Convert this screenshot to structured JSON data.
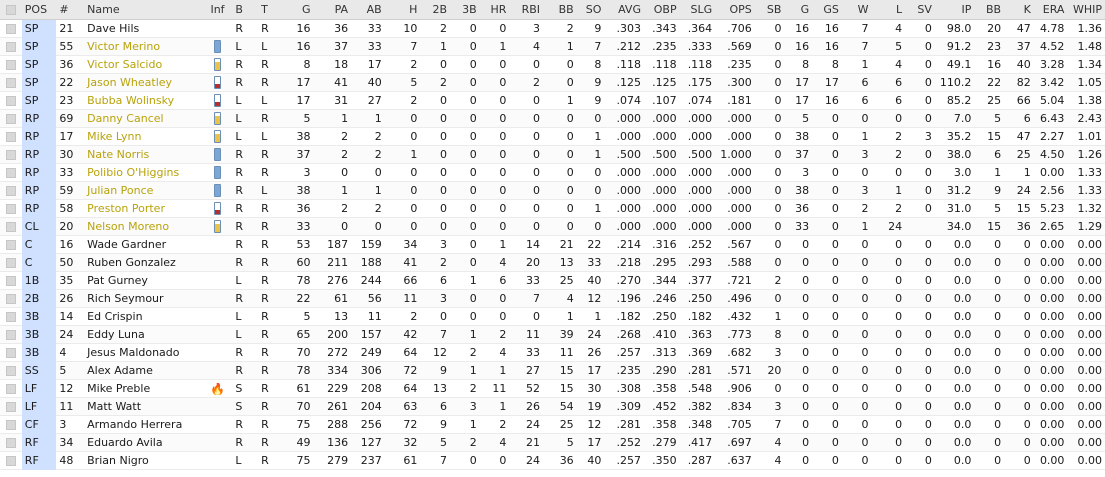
{
  "columns": [
    "POS",
    "#",
    "Name",
    "Inf",
    "B",
    "T",
    "G",
    "PA",
    "AB",
    "H",
    "2B",
    "3B",
    "HR",
    "RBI",
    "BB",
    "SO",
    "AVG",
    "OBP",
    "SLG",
    "OPS",
    "SB",
    "G",
    "GS",
    "W",
    "L",
    "SV",
    "IP",
    "BB",
    "K",
    "ERA",
    "WHIP"
  ],
  "colors": {
    "link": "#b8a30a",
    "battery_blue": "#7aa7d6",
    "battery_yellow": "#e8c44a",
    "battery_red": "#b3312d",
    "pos_bg": "#cfe1ff"
  },
  "rows": [
    {
      "pos": "SP",
      "num": "21",
      "name": "Dave Hils",
      "link": false,
      "inf": "",
      "b": "R",
      "t": "R",
      "v": [
        "16",
        "36",
        "33",
        "10",
        "2",
        "0",
        "0",
        "3",
        "2",
        "9",
        ".303",
        ".343",
        ".364",
        ".706",
        "0",
        "16",
        "16",
        "7",
        "4",
        "0",
        "98.0",
        "20",
        "47",
        "4.78",
        "1.36"
      ]
    },
    {
      "pos": "SP",
      "num": "55",
      "name": "Victor Merino",
      "link": true,
      "inf": "battery-blue",
      "b": "L",
      "t": "L",
      "v": [
        "16",
        "37",
        "33",
        "7",
        "1",
        "0",
        "1",
        "4",
        "1",
        "7",
        ".212",
        ".235",
        ".333",
        ".569",
        "0",
        "16",
        "16",
        "7",
        "5",
        "0",
        "91.2",
        "23",
        "37",
        "4.52",
        "1.48"
      ]
    },
    {
      "pos": "SP",
      "num": "36",
      "name": "Victor Salcido",
      "link": true,
      "inf": "battery-yellow",
      "b": "R",
      "t": "R",
      "v": [
        "8",
        "18",
        "17",
        "2",
        "0",
        "0",
        "0",
        "0",
        "0",
        "8",
        ".118",
        ".118",
        ".118",
        ".235",
        "0",
        "8",
        "8",
        "1",
        "4",
        "0",
        "49.1",
        "16",
        "40",
        "3.28",
        "1.34"
      ]
    },
    {
      "pos": "SP",
      "num": "22",
      "name": "Jason Wheatley",
      "link": true,
      "inf": "battery-red",
      "b": "R",
      "t": "R",
      "v": [
        "17",
        "41",
        "40",
        "5",
        "2",
        "0",
        "0",
        "2",
        "0",
        "9",
        ".125",
        ".125",
        ".175",
        ".300",
        "0",
        "17",
        "17",
        "6",
        "6",
        "0",
        "110.2",
        "22",
        "82",
        "3.42",
        "1.05"
      ]
    },
    {
      "pos": "SP",
      "num": "23",
      "name": "Bubba Wolinsky",
      "link": true,
      "inf": "battery-red",
      "b": "L",
      "t": "L",
      "v": [
        "17",
        "31",
        "27",
        "2",
        "0",
        "0",
        "0",
        "0",
        "1",
        "9",
        ".074",
        ".107",
        ".074",
        ".181",
        "0",
        "17",
        "16",
        "6",
        "6",
        "0",
        "85.2",
        "25",
        "66",
        "5.04",
        "1.38"
      ]
    },
    {
      "pos": "RP",
      "num": "69",
      "name": "Danny Cancel",
      "link": true,
      "inf": "battery-yellow",
      "b": "L",
      "t": "R",
      "v": [
        "5",
        "1",
        "1",
        "0",
        "0",
        "0",
        "0",
        "0",
        "0",
        "0",
        ".000",
        ".000",
        ".000",
        ".000",
        "0",
        "5",
        "0",
        "0",
        "0",
        "0",
        "7.0",
        "5",
        "6",
        "6.43",
        "2.43"
      ]
    },
    {
      "pos": "RP",
      "num": "17",
      "name": "Mike Lynn",
      "link": true,
      "inf": "battery-yellow",
      "b": "L",
      "t": "L",
      "v": [
        "38",
        "2",
        "2",
        "0",
        "0",
        "0",
        "0",
        "0",
        "0",
        "1",
        ".000",
        ".000",
        ".000",
        ".000",
        "0",
        "38",
        "0",
        "1",
        "2",
        "3",
        "35.2",
        "15",
        "47",
        "2.27",
        "1.01"
      ]
    },
    {
      "pos": "RP",
      "num": "30",
      "name": "Nate Norris",
      "link": true,
      "inf": "battery-blue",
      "b": "R",
      "t": "R",
      "v": [
        "37",
        "2",
        "2",
        "1",
        "0",
        "0",
        "0",
        "0",
        "0",
        "1",
        ".500",
        ".500",
        ".500",
        "1.000",
        "0",
        "37",
        "0",
        "3",
        "2",
        "0",
        "38.0",
        "6",
        "25",
        "4.50",
        "1.26"
      ]
    },
    {
      "pos": "RP",
      "num": "33",
      "name": "Polibio O'Higgins",
      "link": true,
      "inf": "battery-blue",
      "b": "R",
      "t": "R",
      "v": [
        "3",
        "0",
        "0",
        "0",
        "0",
        "0",
        "0",
        "0",
        "0",
        "0",
        ".000",
        ".000",
        ".000",
        ".000",
        "0",
        "3",
        "0",
        "0",
        "0",
        "0",
        "3.0",
        "1",
        "1",
        "0.00",
        "1.33"
      ]
    },
    {
      "pos": "RP",
      "num": "59",
      "name": "Julian Ponce",
      "link": true,
      "inf": "battery-blue",
      "b": "R",
      "t": "L",
      "v": [
        "38",
        "1",
        "1",
        "0",
        "0",
        "0",
        "0",
        "0",
        "0",
        "0",
        ".000",
        ".000",
        ".000",
        ".000",
        "0",
        "38",
        "0",
        "3",
        "1",
        "0",
        "31.2",
        "9",
        "24",
        "2.56",
        "1.33"
      ]
    },
    {
      "pos": "RP",
      "num": "58",
      "name": "Preston Porter",
      "link": true,
      "inf": "battery-red",
      "b": "R",
      "t": "R",
      "v": [
        "36",
        "2",
        "2",
        "0",
        "0",
        "0",
        "0",
        "0",
        "0",
        "1",
        ".000",
        ".000",
        ".000",
        ".000",
        "0",
        "36",
        "0",
        "2",
        "2",
        "0",
        "31.0",
        "5",
        "15",
        "5.23",
        "1.32"
      ]
    },
    {
      "pos": "CL",
      "num": "20",
      "name": "Nelson Moreno",
      "link": true,
      "inf": "battery-yellow",
      "b": "R",
      "t": "R",
      "v": [
        "33",
        "0",
        "0",
        "0",
        "0",
        "0",
        "0",
        "0",
        "0",
        "0",
        ".000",
        ".000",
        ".000",
        ".000",
        "0",
        "33",
        "0",
        "1",
        "24",
        "",
        "34.0",
        "15",
        "36",
        "2.65",
        "1.29"
      ]
    },
    {
      "pos": "C",
      "num": "16",
      "name": "Wade Gardner",
      "link": false,
      "inf": "",
      "b": "R",
      "t": "R",
      "v": [
        "53",
        "187",
        "159",
        "34",
        "3",
        "0",
        "1",
        "14",
        "21",
        "22",
        ".214",
        ".316",
        ".252",
        ".567",
        "0",
        "0",
        "0",
        "0",
        "0",
        "0",
        "0.0",
        "0",
        "0",
        "0.00",
        "0.00"
      ]
    },
    {
      "pos": "C",
      "num": "50",
      "name": "Ruben Gonzalez",
      "link": false,
      "inf": "",
      "b": "R",
      "t": "R",
      "v": [
        "60",
        "211",
        "188",
        "41",
        "2",
        "0",
        "4",
        "20",
        "13",
        "33",
        ".218",
        ".295",
        ".293",
        ".588",
        "0",
        "0",
        "0",
        "0",
        "0",
        "0",
        "0.0",
        "0",
        "0",
        "0.00",
        "0.00"
      ]
    },
    {
      "pos": "1B",
      "num": "35",
      "name": "Pat Gurney",
      "link": false,
      "inf": "",
      "b": "L",
      "t": "R",
      "v": [
        "78",
        "276",
        "244",
        "66",
        "6",
        "1",
        "6",
        "33",
        "25",
        "40",
        ".270",
        ".344",
        ".377",
        ".721",
        "2",
        "0",
        "0",
        "0",
        "0",
        "0",
        "0.0",
        "0",
        "0",
        "0.00",
        "0.00"
      ]
    },
    {
      "pos": "2B",
      "num": "26",
      "name": "Rich Seymour",
      "link": false,
      "inf": "",
      "b": "R",
      "t": "R",
      "v": [
        "22",
        "61",
        "56",
        "11",
        "3",
        "0",
        "0",
        "7",
        "4",
        "12",
        ".196",
        ".246",
        ".250",
        ".496",
        "0",
        "0",
        "0",
        "0",
        "0",
        "0",
        "0.0",
        "0",
        "0",
        "0.00",
        "0.00"
      ]
    },
    {
      "pos": "3B",
      "num": "14",
      "name": "Ed Crispin",
      "link": false,
      "inf": "",
      "b": "L",
      "t": "R",
      "v": [
        "5",
        "13",
        "11",
        "2",
        "0",
        "0",
        "0",
        "0",
        "1",
        "1",
        ".182",
        ".250",
        ".182",
        ".432",
        "1",
        "0",
        "0",
        "0",
        "0",
        "0",
        "0.0",
        "0",
        "0",
        "0.00",
        "0.00"
      ]
    },
    {
      "pos": "3B",
      "num": "24",
      "name": "Eddy Luna",
      "link": false,
      "inf": "",
      "b": "L",
      "t": "R",
      "v": [
        "65",
        "200",
        "157",
        "42",
        "7",
        "1",
        "2",
        "11",
        "39",
        "24",
        ".268",
        ".410",
        ".363",
        ".773",
        "8",
        "0",
        "0",
        "0",
        "0",
        "0",
        "0.0",
        "0",
        "0",
        "0.00",
        "0.00"
      ]
    },
    {
      "pos": "3B",
      "num": "4",
      "name": "Jesus Maldonado",
      "link": false,
      "inf": "",
      "b": "R",
      "t": "R",
      "v": [
        "70",
        "272",
        "249",
        "64",
        "12",
        "2",
        "4",
        "33",
        "11",
        "26",
        ".257",
        ".313",
        ".369",
        ".682",
        "3",
        "0",
        "0",
        "0",
        "0",
        "0",
        "0.0",
        "0",
        "0",
        "0.00",
        "0.00"
      ]
    },
    {
      "pos": "SS",
      "num": "5",
      "name": "Alex Adame",
      "link": false,
      "inf": "",
      "b": "R",
      "t": "R",
      "v": [
        "78",
        "334",
        "306",
        "72",
        "9",
        "1",
        "1",
        "27",
        "15",
        "17",
        ".235",
        ".290",
        ".281",
        ".571",
        "20",
        "0",
        "0",
        "0",
        "0",
        "0",
        "0.0",
        "0",
        "0",
        "0.00",
        "0.00"
      ]
    },
    {
      "pos": "LF",
      "num": "12",
      "name": "Mike Preble",
      "link": false,
      "inf": "fire",
      "b": "S",
      "t": "R",
      "v": [
        "61",
        "229",
        "208",
        "64",
        "13",
        "2",
        "11",
        "52",
        "15",
        "30",
        ".308",
        ".358",
        ".548",
        ".906",
        "0",
        "0",
        "0",
        "0",
        "0",
        "0",
        "0.0",
        "0",
        "0",
        "0.00",
        "0.00"
      ]
    },
    {
      "pos": "LF",
      "num": "11",
      "name": "Matt Watt",
      "link": false,
      "inf": "",
      "b": "S",
      "t": "R",
      "v": [
        "70",
        "261",
        "204",
        "63",
        "6",
        "3",
        "1",
        "26",
        "54",
        "19",
        ".309",
        ".452",
        ".382",
        ".834",
        "3",
        "0",
        "0",
        "0",
        "0",
        "0",
        "0.0",
        "0",
        "0",
        "0.00",
        "0.00"
      ]
    },
    {
      "pos": "CF",
      "num": "3",
      "name": "Armando Herrera",
      "link": false,
      "inf": "",
      "b": "R",
      "t": "R",
      "v": [
        "75",
        "288",
        "256",
        "72",
        "9",
        "1",
        "2",
        "24",
        "25",
        "12",
        ".281",
        ".358",
        ".348",
        ".705",
        "7",
        "0",
        "0",
        "0",
        "0",
        "0",
        "0.0",
        "0",
        "0",
        "0.00",
        "0.00"
      ]
    },
    {
      "pos": "RF",
      "num": "34",
      "name": "Eduardo Avila",
      "link": false,
      "inf": "",
      "b": "R",
      "t": "R",
      "v": [
        "49",
        "136",
        "127",
        "32",
        "5",
        "2",
        "4",
        "21",
        "5",
        "17",
        ".252",
        ".279",
        ".417",
        ".697",
        "4",
        "0",
        "0",
        "0",
        "0",
        "0",
        "0.0",
        "0",
        "0",
        "0.00",
        "0.00"
      ]
    },
    {
      "pos": "RF",
      "num": "48",
      "name": "Brian Nigro",
      "link": false,
      "inf": "",
      "b": "L",
      "t": "R",
      "v": [
        "75",
        "279",
        "237",
        "61",
        "7",
        "0",
        "0",
        "24",
        "36",
        "40",
        ".257",
        ".350",
        ".287",
        ".637",
        "4",
        "0",
        "0",
        "0",
        "0",
        "0",
        "0.0",
        "0",
        "0",
        "0.00",
        "0.00"
      ]
    }
  ]
}
